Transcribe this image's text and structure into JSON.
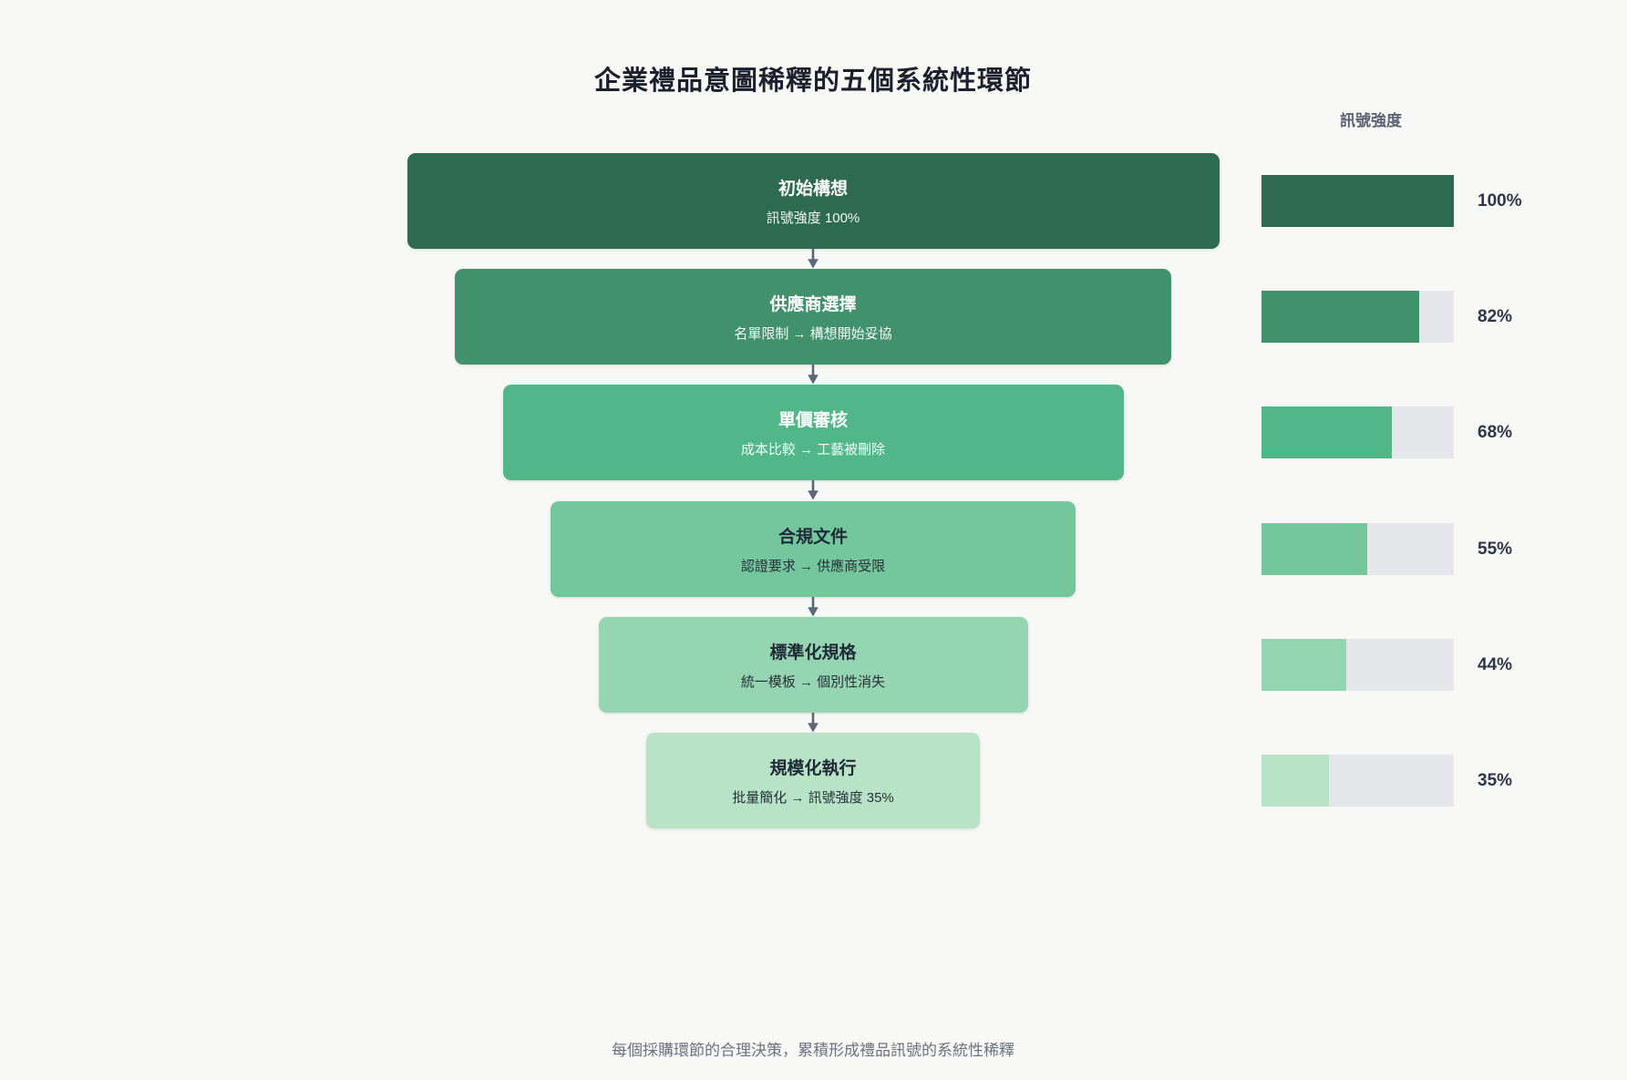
{
  "title": "企業禮品意圖稀釋的五個系統性環節",
  "column_header": "訊號強度",
  "caption": "每個採購環節的合理決策，累積形成禮品訊號的系統性稀釋",
  "stages": [
    {
      "name": "初始構想",
      "detail": "訊號強度 100%",
      "percent": 100,
      "percent_label": "100%",
      "color": "#2d6a4f",
      "text": "light"
    },
    {
      "name": "供應商選擇",
      "detail": "名單限制 → 構想開始妥協",
      "percent": 82,
      "percent_label": "82%",
      "color": "#40916c",
      "text": "light"
    },
    {
      "name": "單價審核",
      "detail": "成本比較 → 工藝被刪除",
      "percent": 68,
      "percent_label": "68%",
      "color": "#52b788",
      "text": "light"
    },
    {
      "name": "合規文件",
      "detail": "認證要求 → 供應商受限",
      "percent": 55,
      "percent_label": "55%",
      "color": "#74c69d",
      "text": "dark"
    },
    {
      "name": "標準化規格",
      "detail": "統一模板 → 個別性消失",
      "percent": 44,
      "percent_label": "44%",
      "color": "#95d5b2",
      "text": "dark"
    },
    {
      "name": "規模化執行",
      "detail": "批量簡化 → 訊號強度 35%",
      "percent": 35,
      "percent_label": "35%",
      "color": "#b7e4c7",
      "text": "dark"
    }
  ],
  "colors": {
    "background": "#f8f9f6",
    "bar_track": "#e5e7ea",
    "percent_label": "#2d3748",
    "column_header": "#5a6472",
    "caption": "#6b7280",
    "title": "#1a202c",
    "arrow": "#5b6776"
  },
  "chart_data": {
    "type": "bar",
    "layout": "vertical funnel of 6 centered stage boxes with matching horizontal progress bars on the right, legend off, grid off",
    "title": "企業禮品意圖稀釋的五個系統性環節",
    "categories": [
      "初始構想",
      "供應商選擇",
      "單價審核",
      "合規文件",
      "標準化規格",
      "規模化執行"
    ],
    "values": [
      100,
      82,
      68,
      55,
      44,
      35
    ],
    "value_unit": "%",
    "value_axis_label": "訊號強度",
    "value_range": [
      0,
      100
    ],
    "annotations": [
      "訊號強度 100%",
      "名單限制 → 構想開始妥協",
      "成本比較 → 工藝被刪除",
      "認證要求 → 供應商受限",
      "統一模板 → 個別性消失",
      "批量簡化 → 訊號強度 35%"
    ],
    "footnote": "每個採購環節的合理決策，累積形成禮品訊號的系統性稀釋",
    "series_colors": [
      "#2d6a4f",
      "#40916c",
      "#52b788",
      "#74c69d",
      "#95d5b2",
      "#b7e4c7"
    ]
  }
}
